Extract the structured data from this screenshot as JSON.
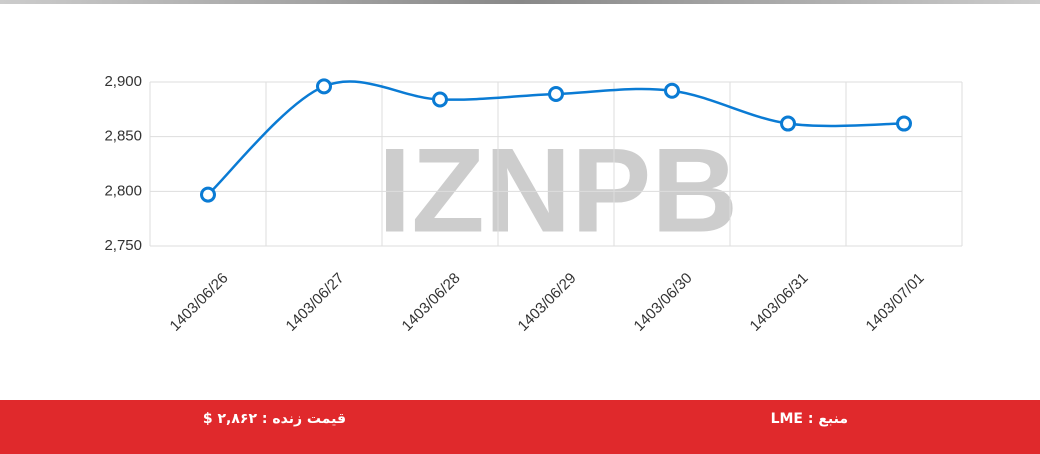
{
  "chart_data": {
    "type": "line",
    "watermark": "IZNPB",
    "categories": [
      "1403/06/26",
      "1403/06/27",
      "1403/06/28",
      "1403/06/29",
      "1403/06/30",
      "1403/06/31",
      "1403/07/01"
    ],
    "series": [
      {
        "name": "LME",
        "color": "#0a7bd4",
        "values": [
          2797,
          2896,
          2884,
          2889,
          2892,
          2862,
          2862
        ]
      }
    ],
    "ylim": [
      2750,
      2900
    ],
    "yticks": [
      {
        "value": 2750,
        "label": "2,750"
      },
      {
        "value": 2800,
        "label": "2,800"
      },
      {
        "value": 2850,
        "label": "2,850"
      },
      {
        "value": 2900,
        "label": "2,900"
      }
    ],
    "grid": true
  },
  "footer": {
    "source": "منبع : LME",
    "live_price": "قیمت زنده : ۲,۸۶۲ $"
  }
}
